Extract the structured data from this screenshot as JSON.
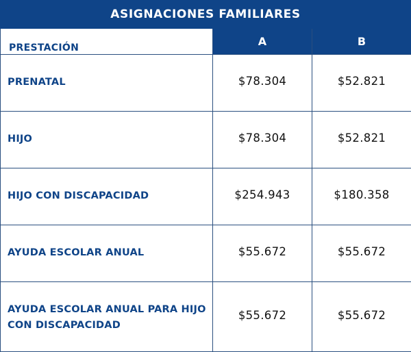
{
  "title": "ASIGNACIONES FAMILIARES",
  "colors": {
    "header_bg": "#0f4488",
    "header_text": "#ffffff",
    "label_text": "#0f4488",
    "value_text": "#111111",
    "border": "#2a4f7f"
  },
  "table": {
    "headers": {
      "benefit": "PRESTACIÓN",
      "a": "A",
      "b": "B"
    },
    "rows": [
      {
        "label": "PRENATAL",
        "a": "$78.304",
        "b": "$52.821"
      },
      {
        "label": "HIJO",
        "a": "$78.304",
        "b": "$52.821"
      },
      {
        "label": "HIJO CON DISCAPACIDAD",
        "a": "$254.943",
        "b": "$180.358"
      },
      {
        "label": "AYUDA ESCOLAR ANUAL",
        "a": "$55.672",
        "b": "$55.672"
      },
      {
        "label": "AYUDA ESCOLAR ANUAL PARA HIJO CON DISCAPACIDAD",
        "a": "$55.672",
        "b": "$55.672"
      }
    ]
  }
}
